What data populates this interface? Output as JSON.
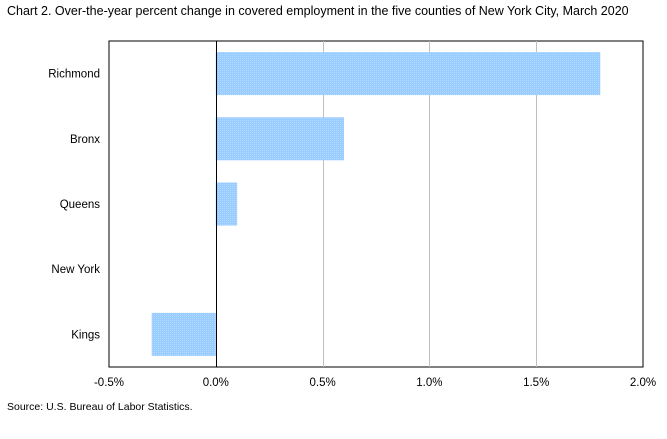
{
  "chart_data": {
    "type": "bar",
    "orientation": "horizontal",
    "title": "Chart 2. Over-the-year  percent change in covered  employment in the five  counties of New York City, March 2020",
    "source": "Source: U.S. Bureau of Labor Statistics.",
    "categories": [
      "Richmond",
      "Bronx",
      "Queens",
      "New York",
      "Kings"
    ],
    "values": [
      1.8,
      0.6,
      0.1,
      0.0,
      -0.3
    ],
    "xlim": [
      -0.5,
      2.0
    ],
    "xticks": [
      -0.5,
      0.0,
      0.5,
      1.0,
      1.5,
      2.0
    ],
    "xtick_labels": [
      "-0.5%",
      "0.0%",
      "0.5%",
      "1.0%",
      "1.5%",
      "2.0%"
    ],
    "xlabel": "",
    "ylabel": "",
    "grid": true,
    "bar_color": "#99ccff"
  }
}
